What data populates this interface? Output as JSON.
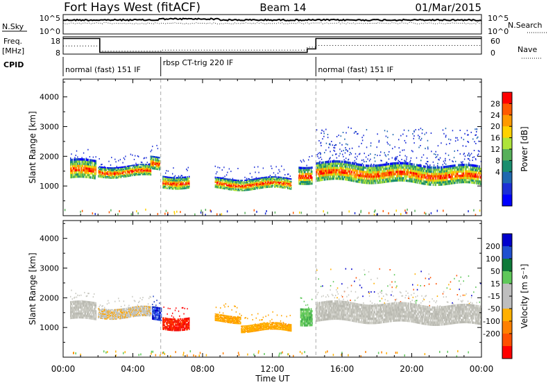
{
  "header": {
    "station": "Fort Hays West (fitACF)",
    "beam": "Beam 14",
    "date": "01/Mar/2015"
  },
  "info_panels": {
    "nsky_label": "N.Sky",
    "nsky_ticks": [
      "10^5",
      "10^0"
    ],
    "nsearch_label": "N.Search",
    "nsearch_ticks": [
      "10^5",
      "10^0"
    ],
    "freq_label": "Freq.",
    "freq_unit": "[MHz]",
    "freq_ticks": [
      "18",
      "8"
    ],
    "nave_label": "Nave",
    "nave_ticks": [
      "60",
      "0"
    ],
    "cpid_label": "CPID",
    "cpid_segments": [
      {
        "label": "normal (fast) 151 IF",
        "start_hour": 0,
        "end_hour": 5.6
      },
      {
        "label": "rbsp CT-trig 220 IF",
        "start_hour": 5.6,
        "end_hour": 14.5
      },
      {
        "label": "normal (fast) 151 IF",
        "start_hour": 14.5,
        "end_hour": 24
      }
    ],
    "freq_series": [
      [
        0,
        17
      ],
      [
        2.1,
        17
      ],
      [
        2.1,
        9
      ],
      [
        14,
        9
      ],
      [
        14,
        11
      ],
      [
        14.5,
        11
      ],
      [
        14.5,
        17
      ],
      [
        24,
        17
      ]
    ],
    "nave_series": [
      [
        0,
        28
      ],
      [
        2.1,
        28
      ],
      [
        2.1,
        10
      ],
      [
        5.6,
        10
      ],
      [
        5.6,
        14
      ],
      [
        14,
        14
      ],
      [
        14,
        24
      ],
      [
        14.5,
        24
      ],
      [
        14.5,
        30
      ],
      [
        24,
        30
      ]
    ],
    "nsky_level": 0.72,
    "nsearch_level": 0.55
  },
  "chart_data": [
    {
      "type": "heatmap",
      "name": "power",
      "ylabel": "Slant Range [km]",
      "ylim": [
        0,
        4600
      ],
      "yticks": [
        1000,
        2000,
        3000,
        4000
      ],
      "xlim": [
        0,
        24
      ],
      "xticks": [
        "00:00",
        "04:00",
        "08:00",
        "12:00",
        "16:00",
        "20:00",
        "00:00"
      ],
      "colorbar": {
        "label": "Power [dB]",
        "ticks": [
          "28",
          "24",
          "20",
          "16",
          "12",
          "8",
          "4"
        ],
        "colors": [
          "#ff0000",
          "#ff5a00",
          "#ff9a00",
          "#ffd200",
          "#aee43a",
          "#57b05a",
          "#1a8e6e",
          "#1f68b0",
          "#1c2fd6",
          "#0000ff"
        ]
      },
      "bands": [
        {
          "start": 0.4,
          "end": 1.9,
          "center": 1550,
          "width": 650
        },
        {
          "start": 2.0,
          "end": 5.0,
          "center": 1500,
          "width": 380
        },
        {
          "start": 5.0,
          "end": 5.5,
          "center": 1750,
          "width": 450
        },
        {
          "start": 5.7,
          "end": 7.2,
          "center": 1150,
          "width": 420
        },
        {
          "start": 8.7,
          "end": 13.1,
          "center": 1080,
          "width": 380
        },
        {
          "start": 13.5,
          "end": 14.3,
          "center": 1400,
          "width": 600
        },
        {
          "start": 14.5,
          "end": 24.0,
          "center": 1500,
          "width": 650
        }
      ]
    },
    {
      "type": "heatmap",
      "name": "velocity",
      "ylabel": "Slant Range [km]",
      "ylim": [
        0,
        4600
      ],
      "yticks": [
        1000,
        2000,
        3000,
        4000
      ],
      "xlim": [
        0,
        24
      ],
      "xticks": [
        "00:00",
        "04:00",
        "08:00",
        "12:00",
        "16:00",
        "20:00",
        "00:00"
      ],
      "xlabel": "Time UT",
      "colorbar": {
        "label": "Velocity [m s⁻¹]",
        "ticks": [
          "200",
          "100",
          "50",
          "15",
          "-15",
          "-50",
          "-100",
          "-200"
        ],
        "colors": [
          "#0000cc",
          "#1f4fd0",
          "#0f7a3a",
          "#5fc85a",
          "#bebebe",
          "#bebebe",
          "#ffb000",
          "#ff8000",
          "#ff5000",
          "#ff0000"
        ]
      },
      "bands": [
        {
          "start": 0.4,
          "end": 1.9,
          "center": 1550,
          "width": 600,
          "tone": "grey"
        },
        {
          "start": 2.0,
          "end": 5.0,
          "center": 1500,
          "width": 350,
          "tone": "grey-orange"
        },
        {
          "start": 5.1,
          "end": 5.6,
          "center": 1450,
          "width": 450,
          "tone": "blue"
        },
        {
          "start": 5.7,
          "end": 7.2,
          "center": 1150,
          "width": 420,
          "tone": "red"
        },
        {
          "start": 8.7,
          "end": 10.2,
          "center": 1300,
          "width": 250,
          "tone": "orange"
        },
        {
          "start": 10.2,
          "end": 13.1,
          "center": 1000,
          "width": 250,
          "tone": "orange"
        },
        {
          "start": 13.6,
          "end": 14.3,
          "center": 1400,
          "width": 600,
          "tone": "green"
        },
        {
          "start": 14.5,
          "end": 24.0,
          "center": 1550,
          "width": 650,
          "tone": "grey"
        }
      ]
    }
  ]
}
